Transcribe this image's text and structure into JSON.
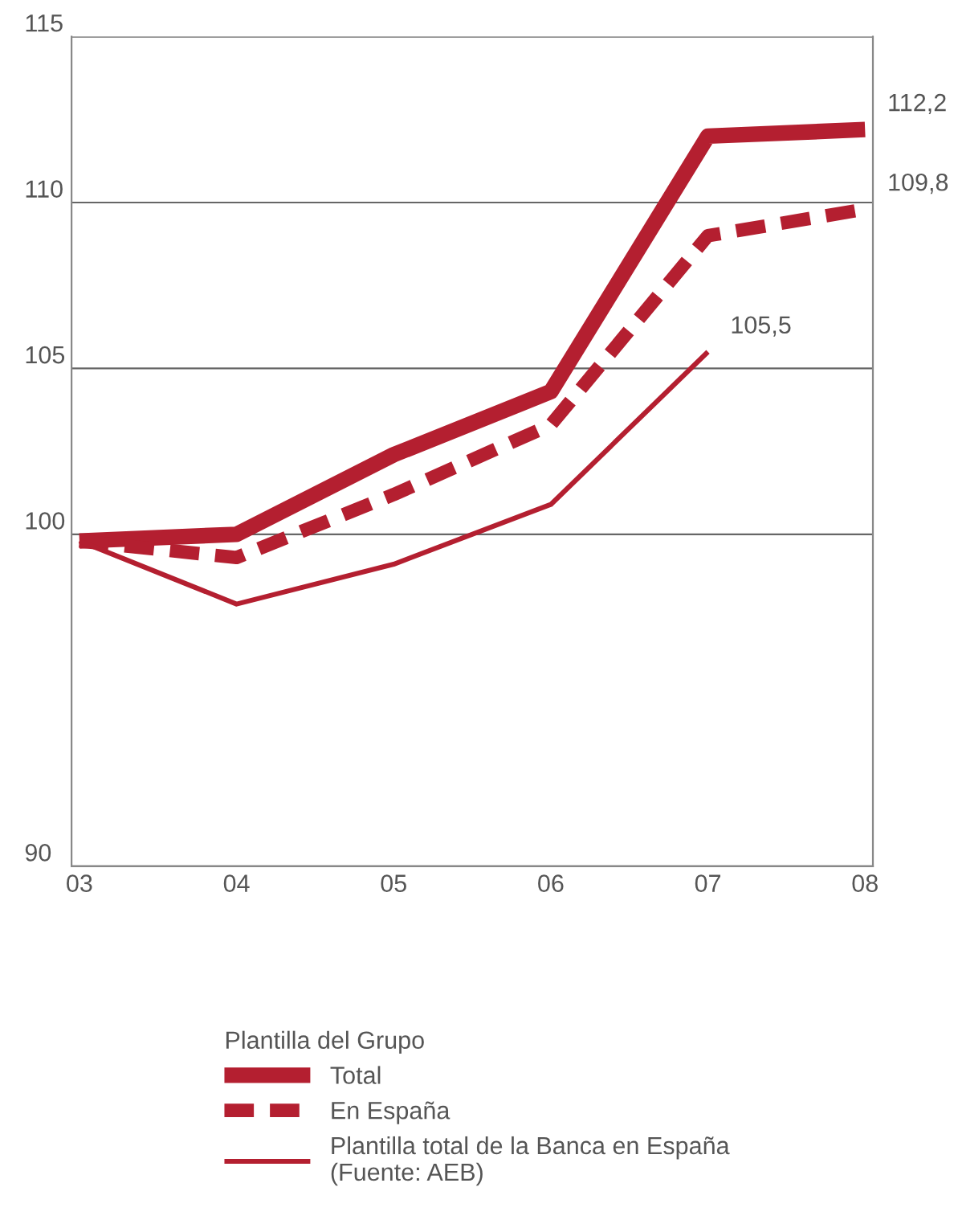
{
  "chart_data": {
    "type": "line",
    "categories": [
      "03",
      "04",
      "05",
      "06",
      "07",
      "08"
    ],
    "series": [
      {
        "name": "Total",
        "color": "#b41f30",
        "line_style": "solid",
        "values": [
          99.8,
          100.0,
          102.4,
          104.3,
          112.0,
          112.2
        ],
        "value_labels": [
          null,
          null,
          null,
          null,
          null,
          "112,2"
        ]
      },
      {
        "name": "En España",
        "color": "#b41f30",
        "line_style": "dashed",
        "values": [
          99.8,
          99.3,
          101.2,
          103.3,
          109.0,
          109.8
        ],
        "value_labels": [
          null,
          null,
          null,
          null,
          null,
          "109,8"
        ]
      },
      {
        "name": "Plantilla total de la Banca en España\n(Fuente: AEB)",
        "color": "#b41f30",
        "line_style": "solid",
        "values": [
          99.8,
          97.9,
          99.1,
          100.9,
          105.5,
          null
        ],
        "value_labels": [
          null,
          null,
          null,
          null,
          "105,5",
          null
        ]
      }
    ],
    "ylim": [
      90,
      115
    ],
    "yticks": [
      90,
      100,
      105,
      110,
      115
    ],
    "grid": "y",
    "legend": "bottom",
    "legend_title": "Plantilla del Grupo",
    "marker": "none"
  }
}
